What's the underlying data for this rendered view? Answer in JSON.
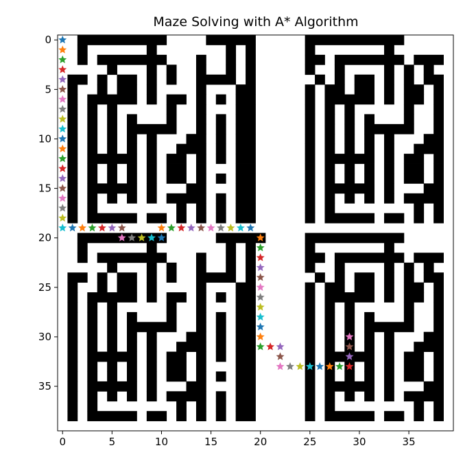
{
  "chart_data": {
    "type": "heatmap",
    "title": "Maze Solving with A* Algorithm",
    "xlabel": "",
    "ylabel": "",
    "xlim": [
      -0.5,
      39.5
    ],
    "ylim": [
      39.5,
      -0.5
    ],
    "x_ticks": [
      0,
      5,
      10,
      15,
      20,
      25,
      30,
      35
    ],
    "y_ticks": [
      0,
      5,
      10,
      15,
      20,
      25,
      30,
      35
    ],
    "x_tick_labels": [
      "0",
      "5",
      "10",
      "15",
      "20",
      "25",
      "30",
      "35"
    ],
    "y_tick_labels": [
      "0",
      "5",
      "10",
      "15",
      "20",
      "25",
      "30",
      "35"
    ],
    "grid": false,
    "colors": {
      "wall": "#000000",
      "open": "#ffffff"
    },
    "marker": "star",
    "marker_color_cycle": [
      "#1f77b4",
      "#ff7f0e",
      "#2ca02c",
      "#d62728",
      "#9467bd",
      "#8c564b",
      "#e377c2",
      "#7f7f7f",
      "#bcbd22",
      "#17becf"
    ],
    "maze_rows": [
      "0011111111100001111100000111111111100000",
      "0010000001000000010100000100000001000000",
      "0010111111100010010100000110111111101110",
      "0000010001010010010100000100100001010100",
      "0110101101010011110100000010101101010110",
      "0100101101000010001100000101101101011010",
      "0101111101011010101100000101111101011010",
      "0101010000010010001100000101010000010010",
      "0101010100010010101100000101010100010010",
      "0101010111110010101100000101010111110010",
      "0101010101000110101100000101010101000110",
      "0101010101001110101100000101010101001110",
      "0101111101011010101100000101111101011010",
      "0101010101011010001100000101010101011010",
      "0101010101011010101100000101010101011010",
      "0101111101000110001100000101111101000110",
      "0101010101011110101100000101010101011110",
      "0101000000001010101100000101000000001010",
      "0101111101101010101100000101111101101010",
      "0000000000000000000000000000000000000000",
      "0011111111100000111110000111111111100000",
      "0010000001000000010100000100000001000000",
      "0010111111100010010100000110111111101110",
      "0000010001010010010100000100100001010100",
      "0110101101010011110100000010101101010110",
      "0100101101000010001100000101101101011010",
      "0101111101011010101100000101111101011010",
      "0101010000010010001100000101010000010010",
      "0101010100010010101100000101010100010010",
      "0101010111110010101100000101010111110010",
      "0101010101000110101100000101010101000110",
      "0101010101001110101100000101010101001110",
      "0101111101011010101100000101111101011010",
      "0101010101011010001100000101010101011010",
      "0101010101011010101100000101010101011010",
      "0101111101000110001100000101111101000110",
      "0101010101011110101100000101010101011110",
      "0101000000001010101100000101000000001010",
      "0101111101101010101100000101111101101010",
      "0000000000000000000000000000000000000000"
    ],
    "path": [
      [
        0,
        0
      ],
      [
        0,
        1
      ],
      [
        0,
        2
      ],
      [
        0,
        3
      ],
      [
        0,
        4
      ],
      [
        0,
        5
      ],
      [
        0,
        6
      ],
      [
        0,
        7
      ],
      [
        0,
        8
      ],
      [
        0,
        9
      ],
      [
        0,
        10
      ],
      [
        0,
        11
      ],
      [
        0,
        12
      ],
      [
        0,
        13
      ],
      [
        0,
        14
      ],
      [
        0,
        15
      ],
      [
        0,
        16
      ],
      [
        0,
        17
      ],
      [
        0,
        18
      ],
      [
        0,
        19
      ],
      [
        1,
        19
      ],
      [
        2,
        19
      ],
      [
        3,
        19
      ],
      [
        4,
        19
      ],
      [
        5,
        19
      ],
      [
        6,
        19
      ],
      [
        6,
        20
      ],
      [
        7,
        20
      ],
      [
        8,
        20
      ],
      [
        9,
        20
      ],
      [
        10,
        20
      ],
      [
        10,
        19
      ],
      [
        11,
        19
      ],
      [
        12,
        19
      ],
      [
        13,
        19
      ],
      [
        14,
        19
      ],
      [
        15,
        19
      ],
      [
        16,
        19
      ],
      [
        17,
        19
      ],
      [
        18,
        19
      ],
      [
        19,
        19
      ],
      [
        20,
        20
      ],
      [
        20,
        21
      ],
      [
        20,
        22
      ],
      [
        20,
        23
      ],
      [
        20,
        24
      ],
      [
        20,
        25
      ],
      [
        20,
        26
      ],
      [
        20,
        27
      ],
      [
        20,
        28
      ],
      [
        20,
        29
      ],
      [
        20,
        30
      ],
      [
        20,
        31
      ],
      [
        21,
        31
      ],
      [
        22,
        31
      ],
      [
        22,
        32
      ],
      [
        22,
        33
      ],
      [
        23,
        33
      ],
      [
        24,
        33
      ],
      [
        25,
        33
      ],
      [
        26,
        33
      ],
      [
        27,
        33
      ],
      [
        28,
        33
      ],
      [
        29,
        33
      ],
      [
        29,
        32
      ],
      [
        29,
        31
      ],
      [
        29,
        30
      ]
    ]
  }
}
